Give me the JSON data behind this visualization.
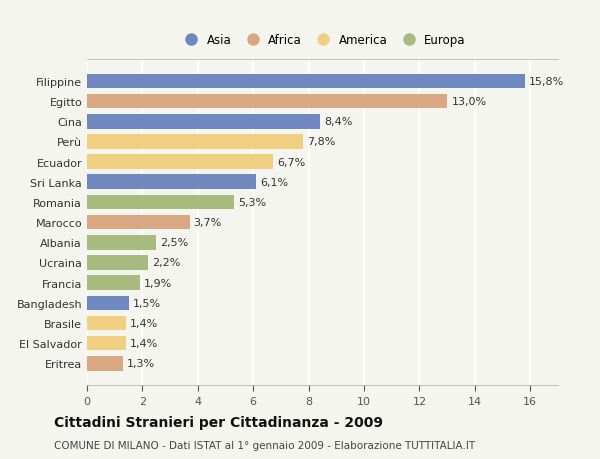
{
  "categories": [
    "Filippine",
    "Egitto",
    "Cina",
    "Perù",
    "Ecuador",
    "Sri Lanka",
    "Romania",
    "Marocco",
    "Albania",
    "Ucraina",
    "Francia",
    "Bangladesh",
    "Brasile",
    "El Salvador",
    "Eritrea"
  ],
  "values": [
    15.8,
    13.0,
    8.4,
    7.8,
    6.7,
    6.1,
    5.3,
    3.7,
    2.5,
    2.2,
    1.9,
    1.5,
    1.4,
    1.4,
    1.3
  ],
  "labels": [
    "15,8%",
    "13,0%",
    "8,4%",
    "7,8%",
    "6,7%",
    "6,1%",
    "5,3%",
    "3,7%",
    "2,5%",
    "2,2%",
    "1,9%",
    "1,5%",
    "1,4%",
    "1,4%",
    "1,3%"
  ],
  "continents": [
    "Asia",
    "Africa",
    "Asia",
    "America",
    "America",
    "Asia",
    "Europa",
    "Africa",
    "Europa",
    "Europa",
    "Europa",
    "Asia",
    "America",
    "America",
    "Africa"
  ],
  "continent_colors": {
    "Asia": "#7088c0",
    "Africa": "#d9a882",
    "America": "#f0d080",
    "Europa": "#a8bb7e"
  },
  "legend_order": [
    "Asia",
    "Africa",
    "America",
    "Europa"
  ],
  "title": "Cittadini Stranieri per Cittadinanza - 2009",
  "subtitle": "COMUNE DI MILANO - Dati ISTAT al 1° gennaio 2009 - Elaborazione TUTTITALIA.IT",
  "xlim": [
    0,
    17
  ],
  "xticks": [
    0,
    2,
    4,
    6,
    8,
    10,
    12,
    14,
    16
  ],
  "background_color": "#f5f5f0",
  "grid_color": "#ffffff",
  "bar_height": 0.72,
  "label_fontsize": 8,
  "title_fontsize": 10,
  "subtitle_fontsize": 7.5,
  "ytick_fontsize": 8,
  "xtick_fontsize": 8,
  "legend_fontsize": 8.5
}
